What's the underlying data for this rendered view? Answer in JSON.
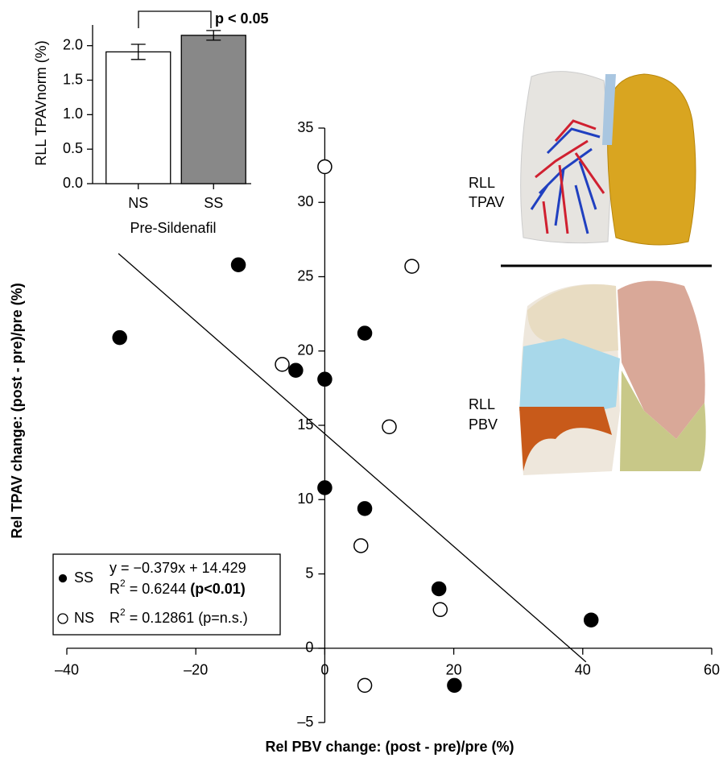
{
  "chart_data": [
    {
      "type": "scatter",
      "xlabel": "Rel PBV change: (post - pre)/pre (%)",
      "ylabel": "Rel TPAV change: (post - pre)/pre (%)",
      "xlim": [
        -40,
        60
      ],
      "ylim": [
        -5,
        35
      ],
      "xticks": [
        {
          "value": -40,
          "label": "–40"
        },
        {
          "value": -20,
          "label": "–20"
        },
        0,
        20,
        40,
        60
      ],
      "yticks": [
        {
          "value": -5,
          "label": "–5"
        },
        0,
        5,
        10,
        15,
        20,
        25,
        30,
        35
      ],
      "series": [
        {
          "name": "SS",
          "color": "#000000",
          "marker": "filled",
          "x": [
            -31.8,
            -13.4,
            -4.5,
            0,
            0,
            6.2,
            6.2,
            17.7,
            20.1,
            41.3
          ],
          "values": [
            20.9,
            25.8,
            18.7,
            18.1,
            10.8,
            21.2,
            9.4,
            4.0,
            -2.5,
            1.9
          ]
        },
        {
          "name": "NS",
          "color": "#000000",
          "marker": "open",
          "x": [
            0,
            -6.6,
            13.5,
            10.0,
            5.6,
            17.9,
            6.2
          ],
          "values": [
            32.4,
            19.1,
            25.7,
            14.9,
            6.9,
            2.6,
            -2.5
          ]
        }
      ],
      "fit": {
        "slope": -0.379,
        "intercept": 14.429,
        "x_range": [
          -32,
          40.5
        ]
      },
      "legend": {
        "ss_equation": "y = −0.379x + 14.429",
        "ss_r": "R",
        "ss_sup": "2",
        "ss_r2": " = 0.6244 ",
        "ss_p": "(p<0.01)",
        "ns_r": "R",
        "ns_sup": "2",
        "ns_r2": " = 0.12861 (p=n.s.)"
      },
      "image_labels": {
        "top": [
          "RLL",
          "TPAV"
        ],
        "bottom": [
          "RLL",
          "PBV"
        ]
      }
    },
    {
      "type": "bar",
      "ylabel": "RLL TPAVnorm (%)",
      "xlabel": "Pre-Sildenafil",
      "categories": [
        "NS",
        "SS"
      ],
      "values": [
        1.91,
        2.15
      ],
      "errors": [
        0.11,
        0.07
      ],
      "colors": [
        "#ffffff",
        "#888888"
      ],
      "ylim": [
        0,
        2.3
      ],
      "yticks": [
        {
          "value": 0,
          "label": "0.0"
        },
        {
          "value": 0.5,
          "label": "0.5"
        },
        {
          "value": 1,
          "label": "1.0"
        },
        {
          "value": 1.5,
          "label": "1.5"
        },
        {
          "value": 2,
          "label": "2.0"
        }
      ],
      "annotation": "p < 0.05"
    }
  ]
}
